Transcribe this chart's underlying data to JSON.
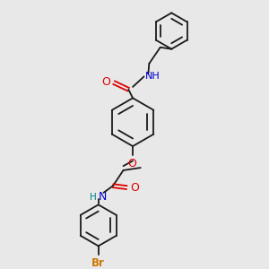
{
  "background_color": "#e8e8e8",
  "bond_color": "#1a1a1a",
  "atom_colors": {
    "O": "#dd0000",
    "N": "#0000cc",
    "Br": "#cc7700",
    "C": "#1a1a1a",
    "H": "#008080"
  },
  "figsize": [
    3.0,
    3.0
  ],
  "dpi": 100,
  "lw": 1.3,
  "fs": 7.5
}
